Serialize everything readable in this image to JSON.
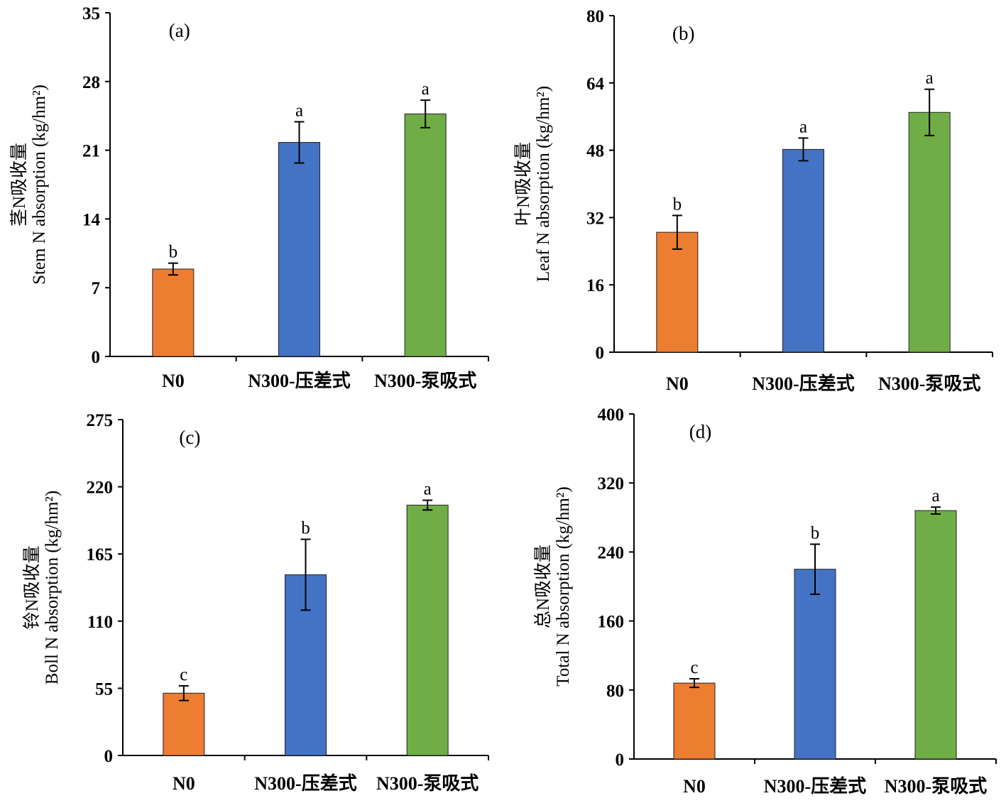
{
  "colors": {
    "N0": "#ED7D31",
    "pressure": "#4472C4",
    "pump": "#70AD47",
    "axis": "#000000"
  },
  "chart_data": [
    {
      "type": "bar",
      "panel": "(a)",
      "ylabel_cn": "茎N吸收量",
      "ylabel_en": "Stem N absorption (kg/hm²)",
      "ylim": [
        0,
        35
      ],
      "yticks": [
        "0",
        "7",
        "14",
        "21",
        "28",
        "35"
      ],
      "categories": [
        "N0",
        "N300-压差式",
        "N300-泵吸式"
      ],
      "values": [
        8.9,
        21.8,
        24.7
      ],
      "errors": [
        0.6,
        2.1,
        1.4
      ],
      "letters": [
        "b",
        "a",
        "a"
      ]
    },
    {
      "type": "bar",
      "panel": "(b)",
      "ylabel_cn": "叶N吸收量",
      "ylabel_en": "Leaf N absorption (kg/hm²)",
      "ylim": [
        0,
        80
      ],
      "yticks": [
        "0",
        "16",
        "32",
        "48",
        "64",
        "80"
      ],
      "categories": [
        "N0",
        "N300-压差式",
        "N300-泵吸式"
      ],
      "values": [
        28.5,
        48.2,
        57.0
      ],
      "errors": [
        4.0,
        2.7,
        5.5
      ],
      "letters": [
        "b",
        "a",
        "a"
      ]
    },
    {
      "type": "bar",
      "panel": "(c)",
      "ylabel_cn": "铃N吸收量",
      "ylabel_en": "Boll N absorption (kg/hm²)",
      "ylim": [
        0,
        275
      ],
      "yticks": [
        "0",
        "55",
        "110",
        "165",
        "220",
        "275"
      ],
      "categories": [
        "N0",
        "N300-压差式",
        "N300-泵吸式"
      ],
      "values": [
        51,
        148,
        205
      ],
      "errors": [
        6,
        29,
        4
      ],
      "letters": [
        "c",
        "b",
        "a"
      ]
    },
    {
      "type": "bar",
      "panel": "(d)",
      "ylabel_cn": "总N吸收量",
      "ylabel_en": "Total N absorption (kg/hm²)",
      "ylim": [
        0,
        400
      ],
      "yticks": [
        "0",
        "80",
        "160",
        "240",
        "320",
        "400"
      ],
      "categories": [
        "N0",
        "N300-压差式",
        "N300-泵吸式"
      ],
      "values": [
        88,
        220,
        288
      ],
      "errors": [
        5,
        29,
        4
      ],
      "letters": [
        "c",
        "b",
        "a"
      ]
    }
  ]
}
